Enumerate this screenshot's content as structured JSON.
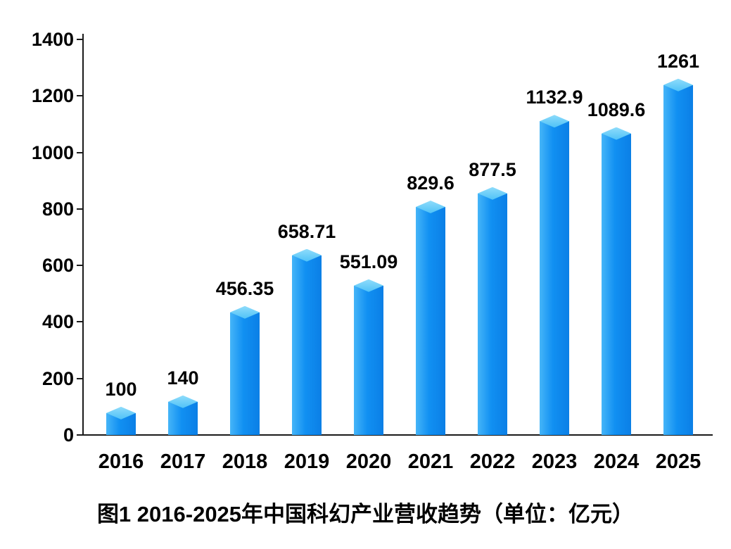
{
  "chart_data": {
    "type": "bar",
    "title": "图1 2016-2025年中国科幻产业营收趋势（单位：亿元）",
    "categories": [
      "2016",
      "2017",
      "2018",
      "2019",
      "2020",
      "2021",
      "2022",
      "2023",
      "2024",
      "2025"
    ],
    "values": [
      100,
      140,
      456.35,
      658.71,
      551.09,
      829.6,
      877.5,
      1132.9,
      1089.6,
      1261
    ],
    "value_labels": [
      "100",
      "140",
      "456.35",
      "658.71",
      "551.09",
      "829.6",
      "877.5",
      "1132.9",
      "1089.6",
      "1261"
    ],
    "xlabel": "",
    "ylabel": "",
    "ylim": [
      0,
      1400
    ],
    "yticks": [
      0,
      200,
      400,
      600,
      800,
      1000,
      1200,
      1400
    ],
    "grid": false,
    "legend": false,
    "colors": {
      "bar_main": "#0b7fe6",
      "bar_light": "#45b5f8",
      "bar_cap": "#8edcfb",
      "axis": "#1a1a1a",
      "text": "#000000",
      "background": "#ffffff"
    }
  }
}
